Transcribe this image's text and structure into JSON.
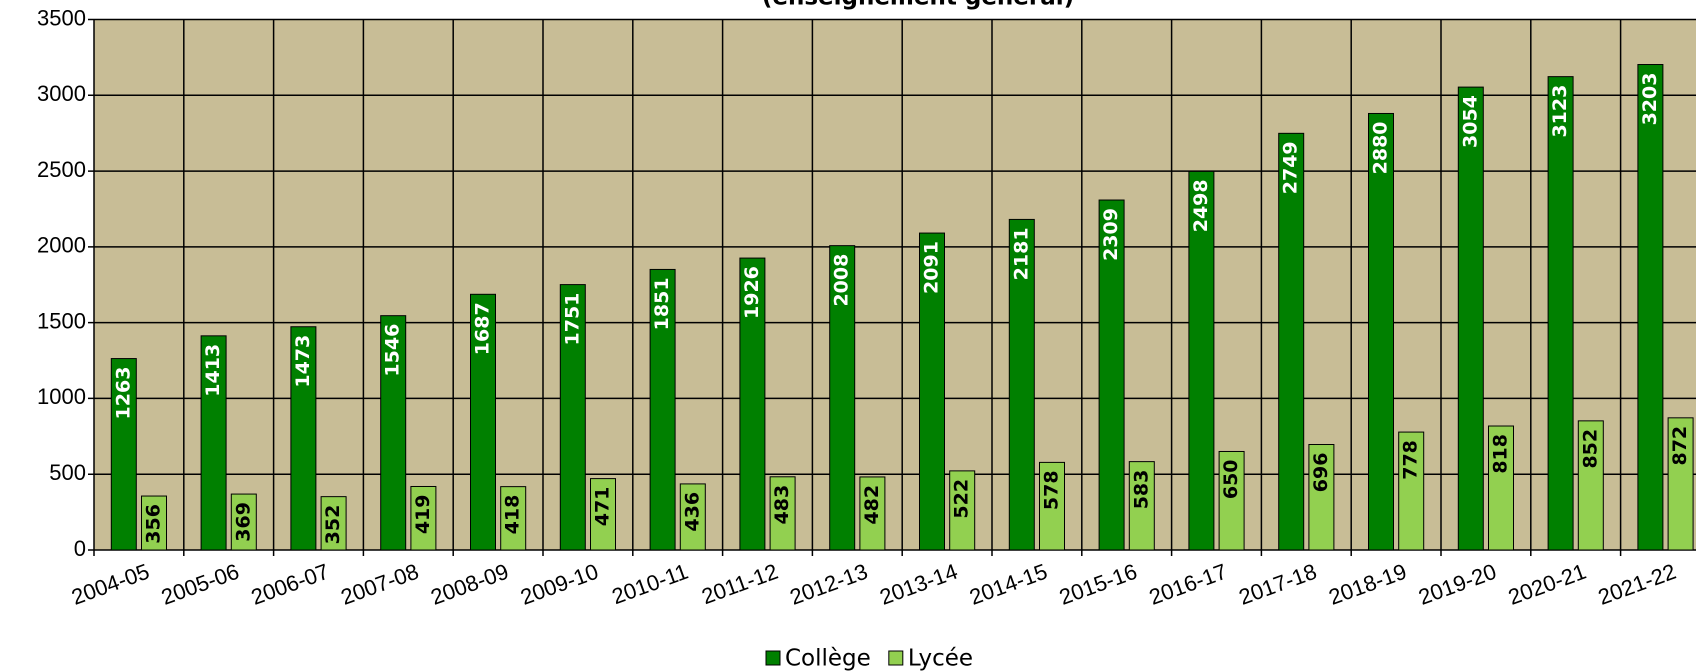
{
  "chart_data": {
    "type": "bar",
    "title": "(enseignement général)",
    "categories": [
      "2004-05",
      "2005-06",
      "2006-07",
      "2007-08",
      "2008-09",
      "2009-10",
      "2010-11",
      "2011-12",
      "2012-13",
      "2013-14",
      "2014-15",
      "2015-16",
      "2016-17",
      "2017-18",
      "2018-19",
      "2019-20",
      "2020-21",
      "2021-22"
    ],
    "series": [
      {
        "name": "Collège",
        "color": "#008000",
        "values": [
          1263,
          1413,
          1473,
          1546,
          1687,
          1751,
          1851,
          1926,
          2008,
          2091,
          2181,
          2309,
          2498,
          2749,
          2880,
          3054,
          3123,
          3203
        ]
      },
      {
        "name": "Lycée",
        "color": "#92d050",
        "values": [
          356,
          369,
          352,
          419,
          418,
          471,
          436,
          483,
          482,
          522,
          578,
          583,
          650,
          696,
          778,
          818,
          852,
          872
        ]
      }
    ],
    "ylim": [
      0,
      3500
    ],
    "yticks": [
      0,
      500,
      1000,
      1500,
      2000,
      2500,
      3000,
      3500
    ],
    "grid": true,
    "legend": "bottom"
  }
}
